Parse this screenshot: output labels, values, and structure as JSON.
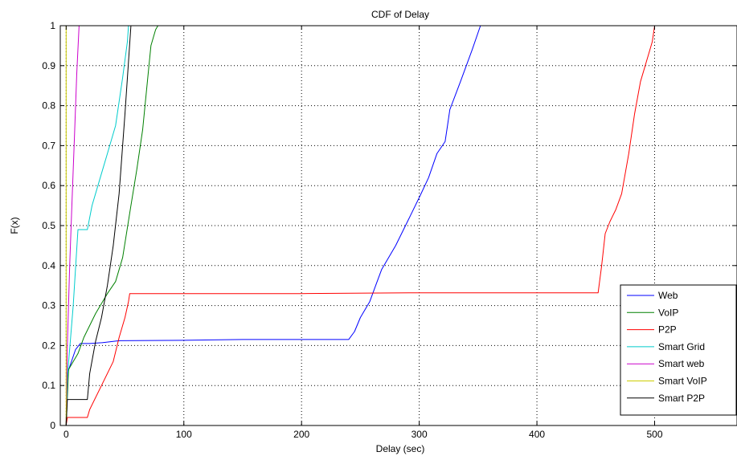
{
  "chart_data": {
    "type": "line",
    "title": "CDF of Delay",
    "xlabel": "Delay (sec)",
    "ylabel": "F(x)",
    "xlim": [
      -5,
      570
    ],
    "ylim": [
      0,
      1
    ],
    "xticks": [
      0,
      100,
      200,
      300,
      400,
      500
    ],
    "yticks": [
      0,
      0.1,
      0.2,
      0.3,
      0.4,
      0.5,
      0.6,
      0.7,
      0.8,
      0.9,
      1
    ],
    "grid": true,
    "legend_position": "bottom-right",
    "series": [
      {
        "name": "Web",
        "color": "#0000ff",
        "points": [
          [
            0,
            0.01
          ],
          [
            1,
            0.13
          ],
          [
            8,
            0.19
          ],
          [
            12,
            0.205
          ],
          [
            20,
            0.205
          ],
          [
            30,
            0.207
          ],
          [
            45,
            0.212
          ],
          [
            100,
            0.213
          ],
          [
            150,
            0.215
          ],
          [
            200,
            0.215
          ],
          [
            240,
            0.215
          ],
          [
            245,
            0.235
          ],
          [
            250,
            0.27
          ],
          [
            258,
            0.31
          ],
          [
            263,
            0.35
          ],
          [
            268,
            0.39
          ],
          [
            280,
            0.45
          ],
          [
            290,
            0.51
          ],
          [
            300,
            0.57
          ],
          [
            308,
            0.62
          ],
          [
            315,
            0.68
          ],
          [
            322,
            0.71
          ],
          [
            324,
            0.75
          ],
          [
            326,
            0.79
          ],
          [
            335,
            0.86
          ],
          [
            345,
            0.94
          ],
          [
            352,
            1.0
          ]
        ]
      },
      {
        "name": "VoIP",
        "color": "#008000",
        "points": [
          [
            0,
            0.0
          ],
          [
            2,
            0.14
          ],
          [
            10,
            0.18
          ],
          [
            15,
            0.22
          ],
          [
            25,
            0.28
          ],
          [
            35,
            0.33
          ],
          [
            42,
            0.36
          ],
          [
            48,
            0.42
          ],
          [
            55,
            0.55
          ],
          [
            60,
            0.64
          ],
          [
            65,
            0.74
          ],
          [
            68,
            0.83
          ],
          [
            72,
            0.95
          ],
          [
            76,
            0.99
          ],
          [
            78,
            1.0
          ]
        ]
      },
      {
        "name": "P2P",
        "color": "#ff0000",
        "points": [
          [
            0,
            0.0
          ],
          [
            1,
            0.02
          ],
          [
            18,
            0.02
          ],
          [
            20,
            0.04
          ],
          [
            30,
            0.1
          ],
          [
            40,
            0.16
          ],
          [
            45,
            0.22
          ],
          [
            50,
            0.27
          ],
          [
            53,
            0.31
          ],
          [
            54,
            0.33
          ],
          [
            100,
            0.33
          ],
          [
            200,
            0.33
          ],
          [
            300,
            0.332
          ],
          [
            400,
            0.332
          ],
          [
            452,
            0.332
          ],
          [
            455,
            0.4
          ],
          [
            458,
            0.48
          ],
          [
            462,
            0.51
          ],
          [
            467,
            0.54
          ],
          [
            472,
            0.58
          ],
          [
            478,
            0.68
          ],
          [
            483,
            0.78
          ],
          [
            488,
            0.86
          ],
          [
            495,
            0.93
          ],
          [
            498,
            0.96
          ],
          [
            500,
            1.0
          ]
        ]
      },
      {
        "name": "Smart Grid",
        "color": "#00cccc",
        "points": [
          [
            0,
            0.0
          ],
          [
            1,
            0.12
          ],
          [
            6,
            0.3
          ],
          [
            10,
            0.49
          ],
          [
            18,
            0.49
          ],
          [
            22,
            0.55
          ],
          [
            28,
            0.61
          ],
          [
            35,
            0.68
          ],
          [
            42,
            0.75
          ],
          [
            48,
            0.87
          ],
          [
            52,
            0.96
          ],
          [
            53,
            1.0
          ]
        ]
      },
      {
        "name": "Smart web",
        "color": "#cc00cc",
        "points": [
          [
            0,
            0.0
          ],
          [
            1,
            0.2
          ],
          [
            3,
            0.4
          ],
          [
            5,
            0.56
          ],
          [
            7,
            0.72
          ],
          [
            9,
            0.88
          ],
          [
            11,
            1.0
          ]
        ]
      },
      {
        "name": "Smart VoIP",
        "color": "#cccc00",
        "points": [
          [
            0,
            0.0
          ],
          [
            0,
            1.0
          ]
        ]
      },
      {
        "name": "Smart P2P",
        "color": "#000000",
        "points": [
          [
            0,
            0.0
          ],
          [
            1,
            0.065
          ],
          [
            18,
            0.065
          ],
          [
            20,
            0.13
          ],
          [
            25,
            0.21
          ],
          [
            30,
            0.27
          ],
          [
            35,
            0.35
          ],
          [
            40,
            0.45
          ],
          [
            45,
            0.58
          ],
          [
            50,
            0.78
          ],
          [
            55,
            1.0
          ]
        ]
      }
    ]
  }
}
